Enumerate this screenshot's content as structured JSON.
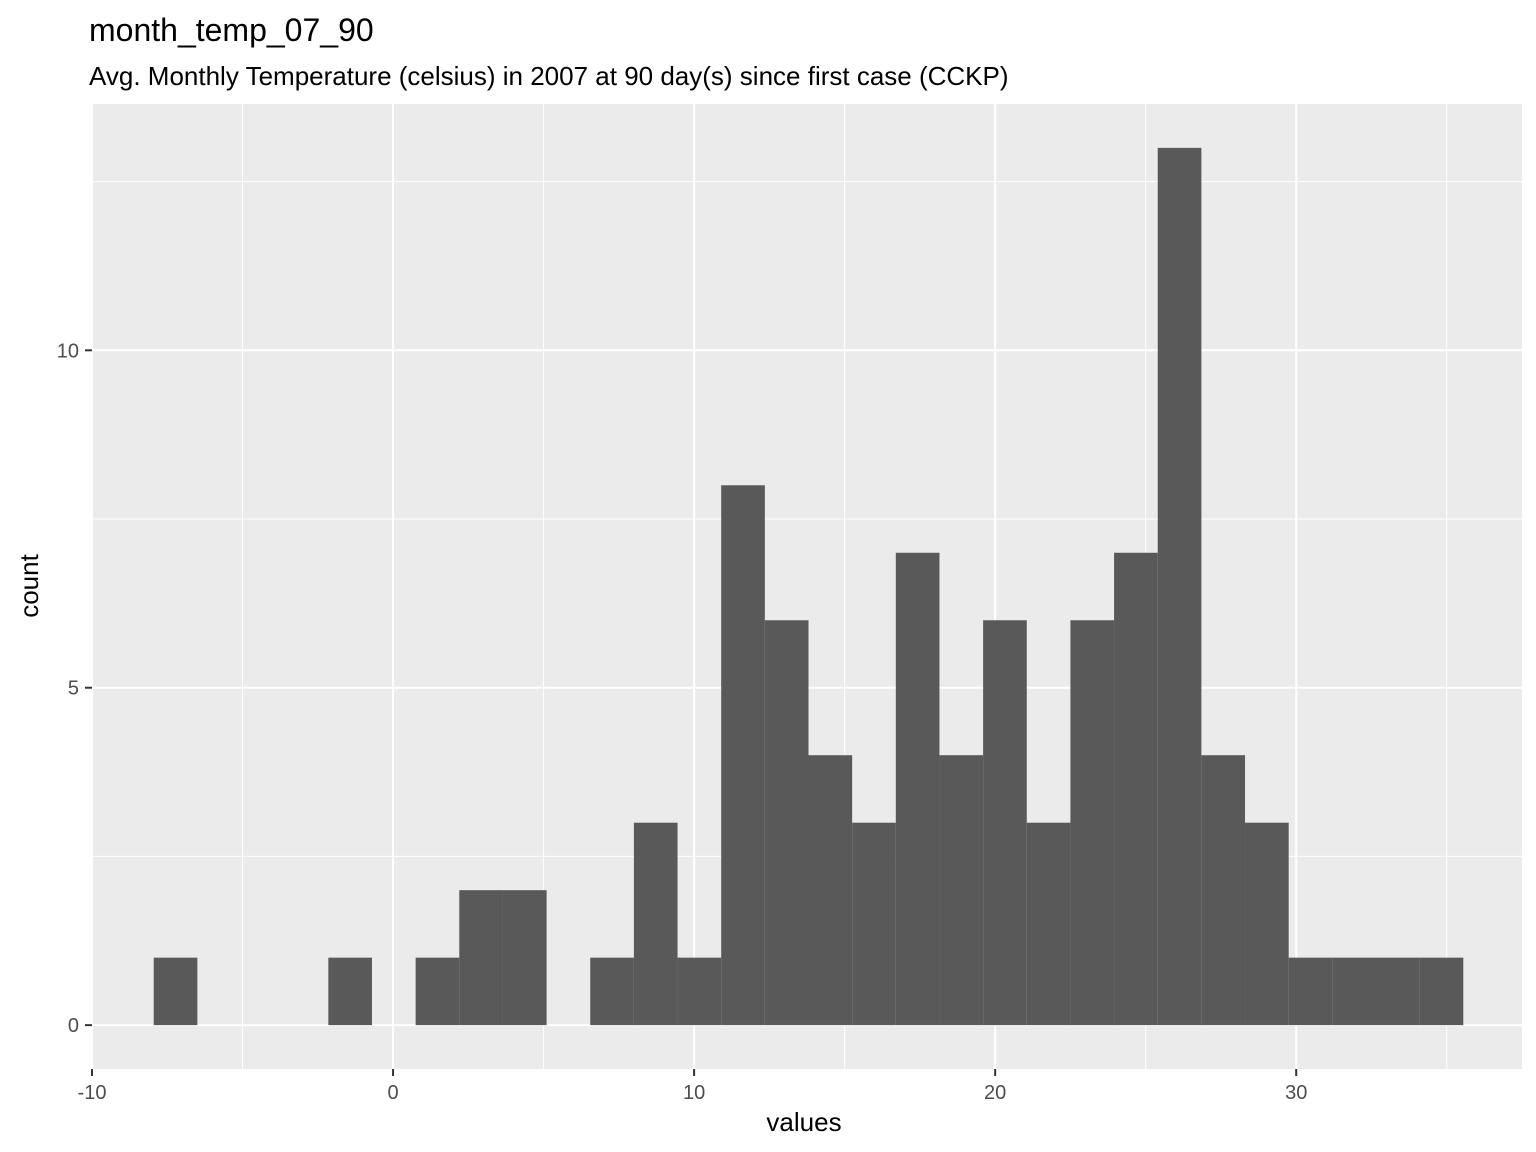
{
  "chart_data": {
    "type": "bar",
    "title": "month_temp_07_90",
    "subtitle": "Avg. Monthly Temperature (celsius) in 2007 at 90 day(s) since first case (CCKP)",
    "xlabel": "values",
    "ylabel": "count",
    "xlim": [
      -10,
      37.5
    ],
    "ylim": [
      -0.65,
      13.65
    ],
    "x_ticks": [
      -10,
      0,
      10,
      20,
      30
    ],
    "x_tick_labels": [
      "-10",
      "0",
      "10",
      "20",
      "30"
    ],
    "y_ticks": [
      0,
      5,
      10
    ],
    "y_tick_labels": [
      "0",
      "5",
      "10"
    ],
    "grid": true,
    "bin_width": 1.45,
    "bins": [
      {
        "x0": -7.95,
        "x1": -6.5,
        "count": 1
      },
      {
        "x0": -6.5,
        "x1": -5.05,
        "count": 0
      },
      {
        "x0": -5.05,
        "x1": -3.6,
        "count": 0
      },
      {
        "x0": -3.6,
        "x1": -2.15,
        "count": 0
      },
      {
        "x0": -2.15,
        "x1": -0.7,
        "count": 1
      },
      {
        "x0": -0.7,
        "x1": 0.75,
        "count": 0
      },
      {
        "x0": 0.75,
        "x1": 2.2,
        "count": 1
      },
      {
        "x0": 2.2,
        "x1": 3.65,
        "count": 2
      },
      {
        "x0": 3.65,
        "x1": 5.1,
        "count": 2
      },
      {
        "x0": 5.1,
        "x1": 6.55,
        "count": 0
      },
      {
        "x0": 6.55,
        "x1": 8.0,
        "count": 1
      },
      {
        "x0": 8.0,
        "x1": 9.45,
        "count": 3
      },
      {
        "x0": 9.45,
        "x1": 10.9,
        "count": 1
      },
      {
        "x0": 10.9,
        "x1": 12.35,
        "count": 8
      },
      {
        "x0": 12.35,
        "x1": 13.8,
        "count": 6
      },
      {
        "x0": 13.8,
        "x1": 15.25,
        "count": 4
      },
      {
        "x0": 15.25,
        "x1": 16.7,
        "count": 3
      },
      {
        "x0": 16.7,
        "x1": 18.15,
        "count": 7
      },
      {
        "x0": 18.15,
        "x1": 19.6,
        "count": 4
      },
      {
        "x0": 19.6,
        "x1": 21.05,
        "count": 6
      },
      {
        "x0": 21.05,
        "x1": 22.5,
        "count": 3
      },
      {
        "x0": 22.5,
        "x1": 23.95,
        "count": 6
      },
      {
        "x0": 23.95,
        "x1": 25.4,
        "count": 7
      },
      {
        "x0": 25.4,
        "x1": 26.85,
        "count": 13
      },
      {
        "x0": 26.85,
        "x1": 28.3,
        "count": 4
      },
      {
        "x0": 28.3,
        "x1": 29.75,
        "count": 3
      },
      {
        "x0": 29.75,
        "x1": 31.2,
        "count": 1
      },
      {
        "x0": 31.2,
        "x1": 32.65,
        "count": 1
      },
      {
        "x0": 32.65,
        "x1": 34.1,
        "count": 1
      },
      {
        "x0": 34.1,
        "x1": 35.55,
        "count": 1
      }
    ],
    "colors": {
      "panel_background": "#EBEBEB",
      "grid_major": "#FFFFFF",
      "bar_fill": "#595959",
      "tick_text": "#4D4D4D",
      "text": "#000000"
    }
  }
}
